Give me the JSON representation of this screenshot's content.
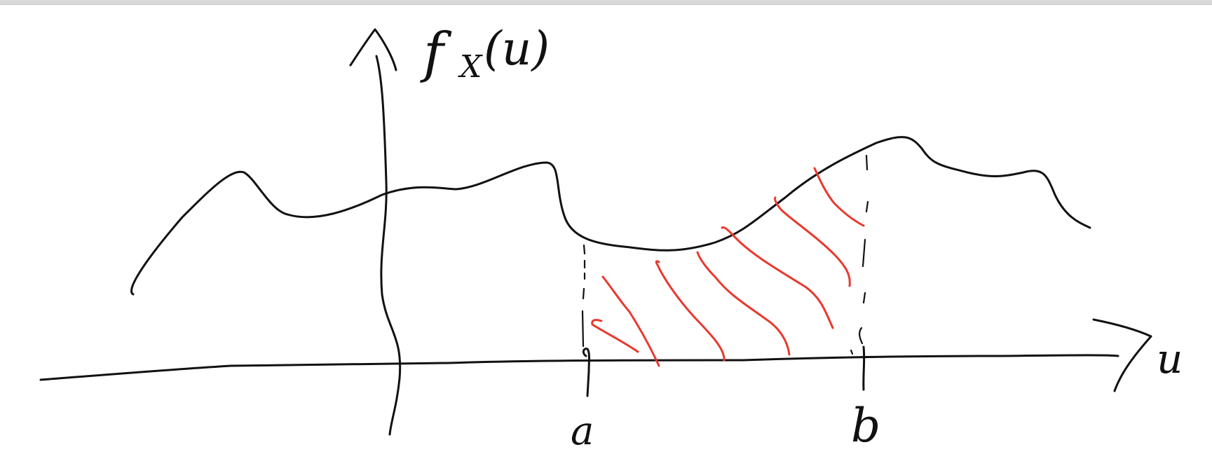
{
  "diagram": {
    "y_axis_label": "fX(u)",
    "y_axis_label_main": "f",
    "y_axis_label_sub": "X",
    "y_axis_label_arg": "(u)",
    "x_axis_label": "u",
    "lower_bound_label": "a",
    "upper_bound_label": "b"
  },
  "colors": {
    "ink": "#111111",
    "shading": "#e8392e"
  }
}
